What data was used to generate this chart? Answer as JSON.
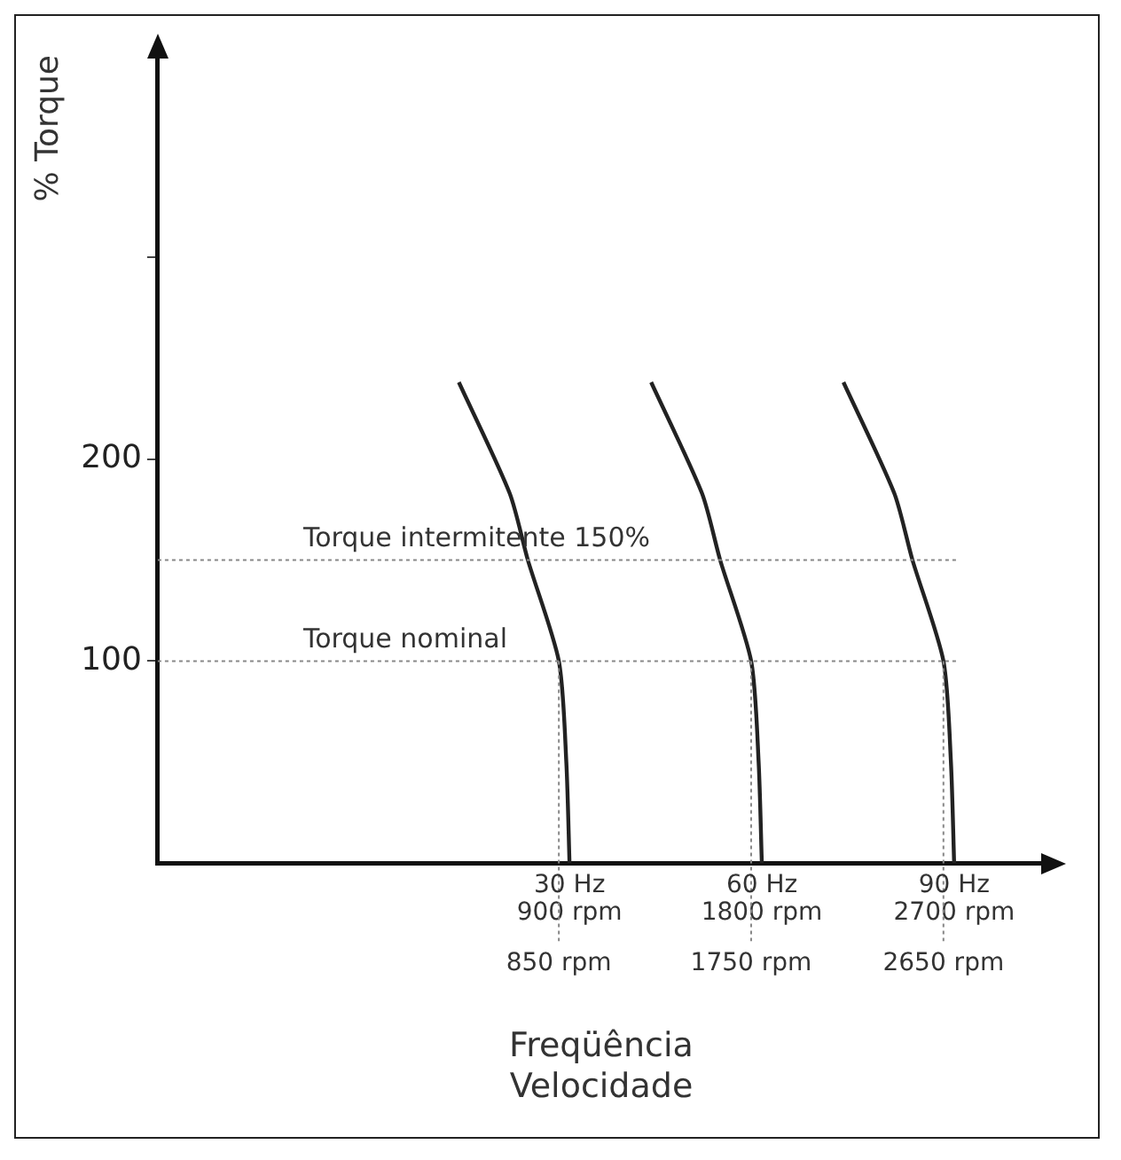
{
  "chart_data": {
    "type": "line",
    "xlabel": "Freqüência\nVelocidade",
    "ylabel": "% Torque",
    "xlim": [
      -1027,
      3124
    ],
    "ylim": [
      0,
      400
    ],
    "xticks": [
      {
        "value": 900,
        "label": "900 rpm"
      },
      {
        "value": 1800,
        "label": "1800 rpm"
      },
      {
        "value": 2700,
        "label": "2700 rpm"
      }
    ],
    "annotations": [
      {
        "text": "30 Hz",
        "x": 900,
        "y": 0
      },
      {
        "text": "60 Hz",
        "x": 1800,
        "y": 0
      },
      {
        "text": "90 Hz",
        "x": 2700,
        "y": 0
      }
    ],
    "yticks": [
      100,
      200,
      {
        "value": 300,
        "label": null
      }
    ],
    "series": [
      {
        "color": "#222222",
        "x": [
          382,
          620,
          705,
          850,
          885,
          900
        ],
        "values": [
          238,
          183,
          150,
          100,
          50,
          0
        ]
      },
      {
        "color": "#222222",
        "x": [
          1282,
          1520,
          1605,
          1750,
          1785,
          1800
        ],
        "values": [
          238,
          183,
          150,
          100,
          50,
          0
        ]
      },
      {
        "color": "#222222",
        "x": [
          2182,
          2420,
          2505,
          2650,
          2685,
          2700
        ],
        "values": [
          238,
          183,
          150,
          100,
          50,
          0
        ]
      }
    ],
    "ref_lines": [
      {
        "axis": "y",
        "value": 150,
        "label": "Torque intermitente 150%",
        "color": "#888888",
        "line_style": "dotted"
      },
      {
        "axis": "y",
        "value": 100,
        "label": "Torque nominal",
        "color": "#888888",
        "line_style": "dotted"
      },
      {
        "axis": "x",
        "value": 850,
        "label": "850 rpm",
        "color": "#888888",
        "line_style": "dotted"
      },
      {
        "axis": "x",
        "value": 1750,
        "label": "1750 rpm",
        "color": "#888888",
        "line_style": "dotted"
      },
      {
        "axis": "x",
        "value": 2650,
        "label": "2650 rpm",
        "color": "#888888",
        "line_style": "dotted"
      }
    ],
    "grid": false,
    "legend": false,
    "marker": "none",
    "line_style": "solid"
  }
}
